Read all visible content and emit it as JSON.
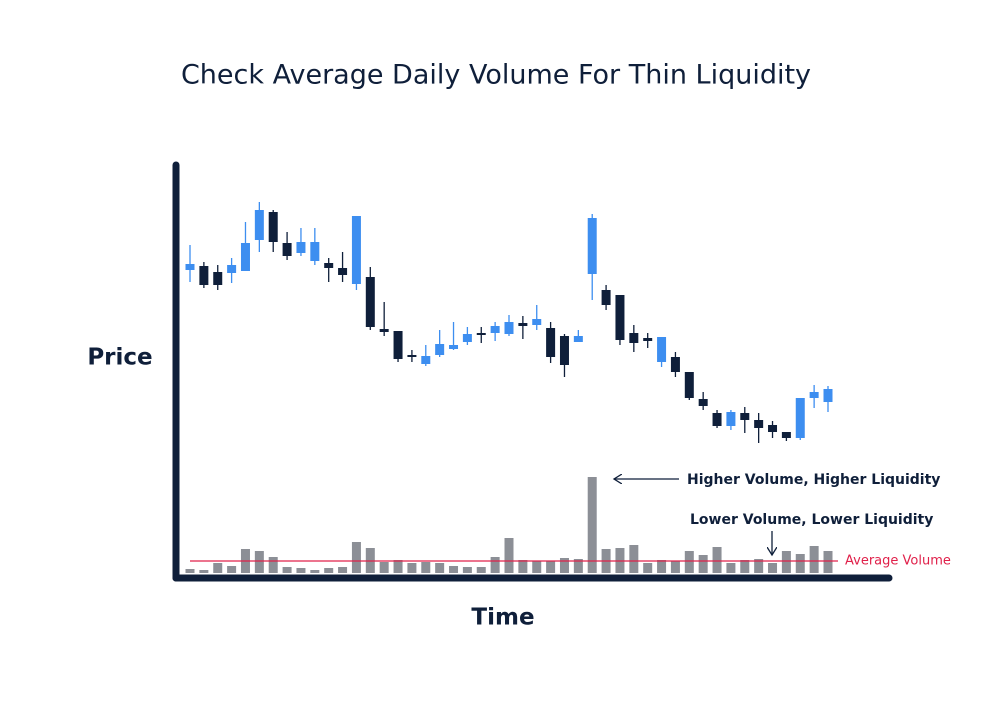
{
  "chart_data": {
    "type": "candlestick",
    "title": "Check Average Daily Volume For Thin Liquidity",
    "ylabel": "Price",
    "xlabel": "Time",
    "up_color": "#3d8ef0",
    "down_color": "#0f1f3a",
    "volume_color": "#8c8f96",
    "average_color": "#e0204a",
    "ylim": [
      -80,
      340
    ],
    "y2lim": [
      0,
      100
    ],
    "open": [
      230,
      234,
      228,
      227,
      229,
      260,
      288,
      257,
      247,
      239,
      237,
      232,
      216,
      223,
      171,
      169,
      145,
      136,
      145,
      151,
      158,
      167,
      167,
      166,
      177,
      175,
      172,
      164,
      158,
      226,
      210,
      205,
      167,
      162,
      138,
      143,
      128,
      101,
      87,
      74,
      87,
      80,
      75,
      68,
      62,
      102,
      98
    ],
    "high": [
      255,
      238,
      235,
      242,
      278,
      298,
      290,
      268,
      272,
      272,
      242,
      248,
      284,
      233,
      198,
      169,
      150,
      155,
      170,
      178,
      173,
      173,
      178,
      185,
      184,
      195,
      178,
      166,
      170,
      286,
      215,
      205,
      175,
      167,
      163,
      148,
      128,
      108,
      90,
      90,
      93,
      87,
      79,
      68,
      102,
      115,
      114
    ],
    "low": [
      218,
      212,
      210,
      217,
      229,
      248,
      248,
      240,
      244,
      235,
      218,
      218,
      210,
      170,
      164,
      138,
      138,
      134,
      143,
      150,
      155,
      157,
      159,
      164,
      161,
      170,
      137,
      123,
      158,
      200,
      190,
      155,
      148,
      152,
      133,
      123,
      100,
      90,
      72,
      70,
      67,
      57,
      62,
      59,
      60,
      92,
      88
    ],
    "close": [
      236,
      215,
      215,
      235,
      257,
      290,
      258,
      244,
      258,
      258,
      232,
      225,
      284,
      173,
      168,
      141,
      143,
      144,
      156,
      155,
      166,
      165,
      174,
      178,
      174,
      181,
      143,
      135,
      164,
      282,
      195,
      160,
      157,
      159,
      163,
      128,
      102,
      94,
      74,
      88,
      80,
      72,
      68,
      62,
      102,
      108,
      111
    ],
    "volume": [
      4,
      3,
      10,
      7,
      24,
      22,
      16,
      6,
      5,
      3,
      5,
      6,
      31,
      25,
      11,
      13,
      10,
      11,
      10,
      7,
      6,
      6,
      16,
      35,
      13,
      12,
      12,
      15,
      14,
      96,
      24,
      25,
      28,
      10,
      13,
      12,
      22,
      18,
      26,
      10,
      13,
      14,
      10,
      22,
      19,
      27,
      22
    ],
    "average_volume": 12,
    "average_label": "Average Volume",
    "annotations": [
      "Higher Volume, Higher Liquidity",
      "Lower Volume, Lower Liquidity"
    ]
  }
}
